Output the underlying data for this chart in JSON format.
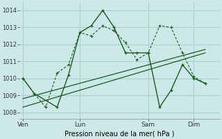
{
  "bg_color": "#cce8e8",
  "grid_color": "#aad0d0",
  "line_color": "#1a5c1a",
  "title": "Pression niveau de la mer( hPa )",
  "ylabel_ticks": [
    1008,
    1009,
    1010,
    1011,
    1012,
    1013,
    1014
  ],
  "xtick_labels": [
    "Ven",
    "Lun",
    "Sam",
    "Dim"
  ],
  "xtick_positions": [
    0,
    5,
    11,
    15
  ],
  "xlim": [
    -0.3,
    17.3
  ],
  "ylim": [
    1007.6,
    1014.5
  ],
  "series1_x": [
    0,
    1,
    2,
    3,
    4,
    5,
    6,
    7,
    8,
    9,
    10,
    11,
    12,
    13,
    14,
    15,
    16
  ],
  "series1_y": [
    1010.0,
    1009.1,
    1008.3,
    1010.3,
    1010.8,
    1012.7,
    1012.5,
    1013.1,
    1012.8,
    1012.1,
    1011.1,
    1011.5,
    1013.1,
    1013.0,
    1011.5,
    1010.1,
    1009.7
  ],
  "series2_x": [
    0,
    1,
    3,
    4,
    5,
    6,
    7,
    8,
    9,
    10,
    11,
    12,
    13,
    14,
    15,
    16
  ],
  "series2_y": [
    1010.0,
    1009.1,
    1008.3,
    1010.2,
    1012.7,
    1013.1,
    1014.0,
    1013.0,
    1011.5,
    1011.5,
    1011.5,
    1008.3,
    1009.3,
    1010.8,
    1010.0,
    1009.7
  ],
  "series3_x": [
    0,
    16
  ],
  "series3_y": [
    1008.3,
    1011.5
  ],
  "series4_x": [
    0,
    16
  ],
  "series4_y": [
    1008.8,
    1011.7
  ]
}
